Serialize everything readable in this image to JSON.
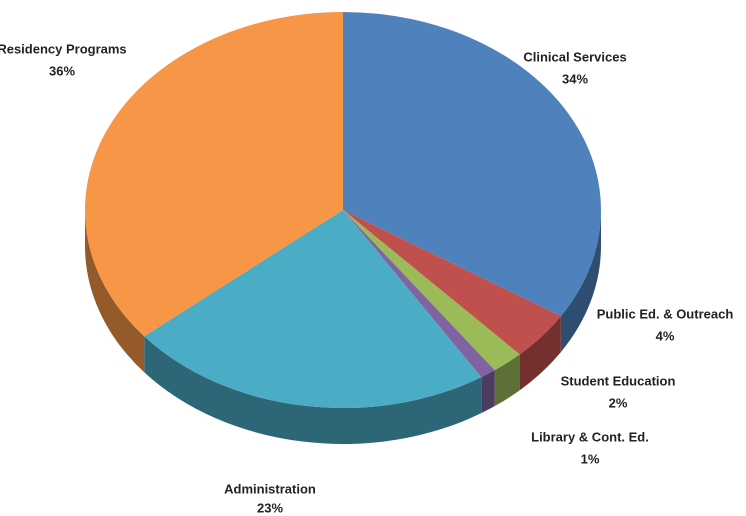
{
  "chart_data": {
    "type": "pie",
    "categories": [
      "Clinical Services",
      "Public Ed. & Outreach",
      "Student Education",
      "Library & Cont. Ed.",
      "Administration",
      "Residency Programs"
    ],
    "values": [
      34,
      4,
      2,
      1,
      23,
      36
    ],
    "value_labels": [
      "34%",
      "4%",
      "2%",
      "1%",
      "23%",
      "36%"
    ],
    "colors": [
      "#4f81bd",
      "#c0504d",
      "#9bbb59",
      "#8064a2",
      "#4bacc6",
      "#f79646"
    ]
  }
}
